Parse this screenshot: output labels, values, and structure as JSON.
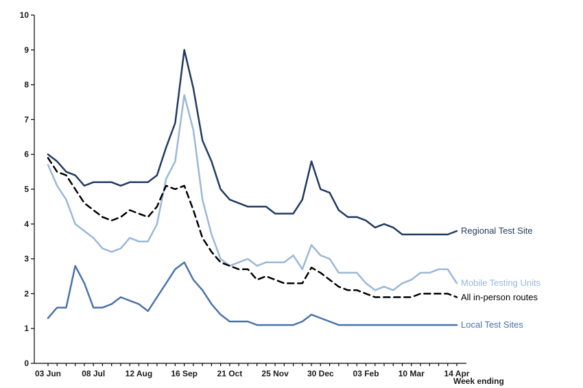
{
  "chart_data": {
    "type": "line",
    "title": "",
    "xlabel": "Week ending",
    "ylabel": "",
    "ylim": [
      0,
      10
    ],
    "y_ticks": [
      0,
      1,
      2,
      3,
      4,
      5,
      6,
      7,
      8,
      9,
      10
    ],
    "x_tick_labels": [
      {
        "index": 0,
        "label": "03 Jun"
      },
      {
        "index": 5,
        "label": "08 Jul"
      },
      {
        "index": 10,
        "label": "12 Aug"
      },
      {
        "index": 15,
        "label": "16 Sep"
      },
      {
        "index": 20,
        "label": "21 Oct"
      },
      {
        "index": 25,
        "label": "25 Nov"
      },
      {
        "index": 30,
        "label": "30 Dec"
      },
      {
        "index": 35,
        "label": "03 Feb"
      },
      {
        "index": 40,
        "label": "10 Mar"
      },
      {
        "index": 45,
        "label": "14 Apr"
      }
    ],
    "grid": false,
    "legend": "labels at line ends (right)",
    "series": [
      {
        "name": "Regional Test Site",
        "color": "#1f3a5f",
        "dash": "solid",
        "values": [
          6.0,
          5.8,
          5.5,
          5.4,
          5.1,
          5.2,
          5.2,
          5.2,
          5.1,
          5.2,
          5.2,
          5.2,
          5.4,
          6.2,
          6.9,
          9.0,
          7.9,
          6.4,
          5.8,
          5.0,
          4.7,
          4.6,
          4.5,
          4.5,
          4.5,
          4.3,
          4.3,
          4.3,
          4.7,
          5.8,
          5.0,
          4.9,
          4.4,
          4.2,
          4.2,
          4.1,
          3.9,
          4.0,
          3.9,
          3.7,
          3.7,
          3.7,
          3.7,
          3.7,
          3.7,
          3.8
        ]
      },
      {
        "name": "Mobile Testing Units",
        "color": "#9ab7d8",
        "dash": "solid",
        "values": [
          5.7,
          5.1,
          4.7,
          4.0,
          3.8,
          3.6,
          3.3,
          3.2,
          3.3,
          3.6,
          3.5,
          3.5,
          4.0,
          5.3,
          5.8,
          7.7,
          6.7,
          4.7,
          3.7,
          3.0,
          2.8,
          2.9,
          3.0,
          2.8,
          2.9,
          2.9,
          2.9,
          3.1,
          2.7,
          3.4,
          3.1,
          3.0,
          2.6,
          2.6,
          2.6,
          2.3,
          2.1,
          2.2,
          2.1,
          2.3,
          2.4,
          2.6,
          2.6,
          2.7,
          2.7,
          2.3
        ]
      },
      {
        "name": "All in-person routes",
        "color": "#000000",
        "dash": "dashed",
        "values": [
          5.9,
          5.5,
          5.4,
          5.0,
          4.6,
          4.4,
          4.2,
          4.1,
          4.2,
          4.4,
          4.3,
          4.2,
          4.5,
          5.1,
          5.0,
          5.1,
          4.4,
          3.6,
          3.2,
          2.9,
          2.8,
          2.7,
          2.7,
          2.4,
          2.5,
          2.4,
          2.3,
          2.3,
          2.3,
          2.75,
          2.6,
          2.4,
          2.2,
          2.1,
          2.1,
          2.0,
          1.9,
          1.9,
          1.9,
          1.9,
          1.9,
          2.0,
          2.0,
          2.0,
          2.0,
          1.9
        ]
      },
      {
        "name": "Local Test Sites",
        "color": "#4a72a8",
        "dash": "solid",
        "values": [
          1.3,
          1.6,
          1.6,
          2.8,
          2.3,
          1.6,
          1.6,
          1.7,
          1.9,
          1.8,
          1.7,
          1.5,
          1.9,
          2.3,
          2.7,
          2.9,
          2.4,
          2.1,
          1.7,
          1.4,
          1.2,
          1.2,
          1.2,
          1.1,
          1.1,
          1.1,
          1.1,
          1.1,
          1.2,
          1.4,
          1.3,
          1.2,
          1.1,
          1.1,
          1.1,
          1.1,
          1.1,
          1.1,
          1.1,
          1.1,
          1.1,
          1.1,
          1.1,
          1.1,
          1.1,
          1.1
        ]
      }
    ]
  }
}
